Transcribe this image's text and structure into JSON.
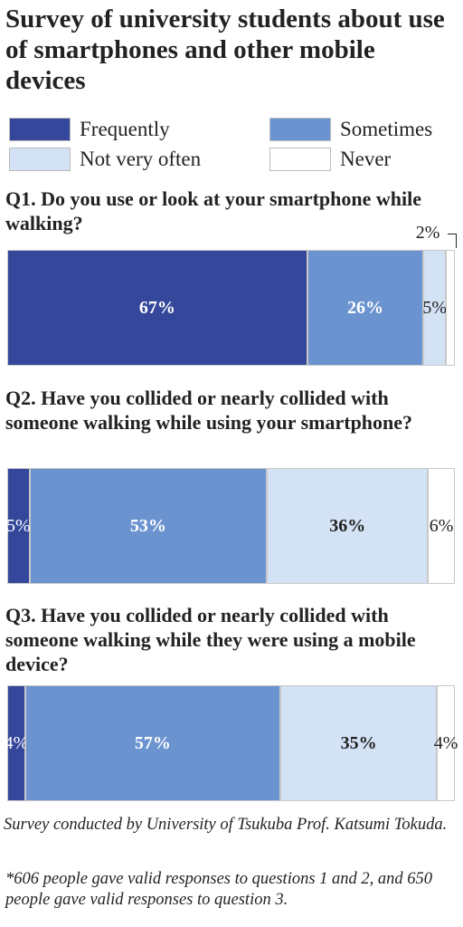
{
  "chart_data": {
    "type": "bar",
    "orientation": "horizontal",
    "stacked": true,
    "title": "Survey of university students about use of smartphones and other mobile devices",
    "categories": [
      "Q1. Do you use or look at your smartphone while walking?",
      "Q2. Have you collided or nearly collided with someone walking while using your smartphone?",
      "Q3. Have you collided or nearly collided with someone walking while they were using a mobile device?"
    ],
    "series": [
      {
        "name": "Frequently",
        "color": "#34479a",
        "values": [
          67,
          5,
          4
        ],
        "value_labels": [
          "67%",
          "5%",
          "4%"
        ]
      },
      {
        "name": "Sometimes",
        "color": "#6b93cf",
        "values": [
          26,
          53,
          57
        ],
        "value_labels": [
          "26%",
          "53%",
          "57%"
        ]
      },
      {
        "name": "Not very often",
        "color": "#d3e2f5",
        "values": [
          5,
          36,
          35
        ],
        "value_labels": [
          "5%",
          "36%",
          "35%"
        ]
      },
      {
        "name": "Never",
        "color": "#ffffff",
        "values": [
          2,
          6,
          4
        ],
        "value_labels": [
          "2%",
          "6%",
          "4%"
        ]
      }
    ],
    "xlim": [
      0,
      100
    ],
    "notes": [
      "Survey conducted by University of Tsukuba Prof. Katsumi Tokuda.",
      "*606 people gave valid responses to questions 1 and 2, and 650 people gave valid responses to question 3."
    ]
  }
}
